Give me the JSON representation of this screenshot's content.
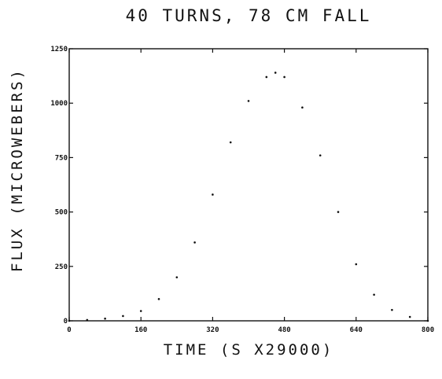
{
  "chart_data": {
    "type": "scatter",
    "title": "40 TURNS, 78 CM FALL",
    "xlabel": "TIME (S X29000)",
    "ylabel": "FLUX (MICROWEBERS)",
    "xlim": [
      0,
      800
    ],
    "ylim": [
      0,
      1250
    ],
    "xticks": [
      "0",
      "160",
      "320",
      "480",
      "640",
      "800"
    ],
    "yticks": [
      "0",
      "250",
      "500",
      "750",
      "1000",
      "1250"
    ],
    "grid": false,
    "series": [
      {
        "x": [
          0,
          40,
          80,
          120,
          160,
          200,
          240,
          280,
          320,
          360,
          400,
          440,
          460,
          480,
          520,
          560,
          600,
          640,
          680,
          720,
          760,
          800
        ],
        "y": [
          0,
          4,
          10,
          22,
          45,
          100,
          200,
          360,
          580,
          820,
          1010,
          1120,
          1140,
          1120,
          980,
          760,
          500,
          260,
          120,
          50,
          18,
          0
        ]
      }
    ]
  }
}
